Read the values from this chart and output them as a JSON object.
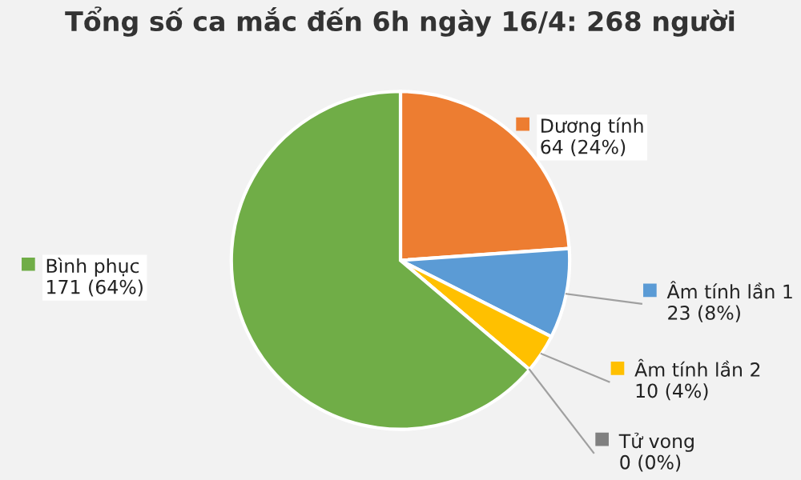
{
  "chart_data": {
    "type": "pie",
    "title": "Tổng số ca mắc đến 6h ngày 16/4: 268 người",
    "categories": [
      "Dương tính",
      "Âm tính lần 1",
      "Âm tính lần 2",
      "Tử vong",
      "Bình phục"
    ],
    "values": [
      64,
      23,
      10,
      0,
      171
    ],
    "colors": [
      "#ed7d31",
      "#5b9bd5",
      "#ffc000",
      "#808080",
      "#70ad47"
    ],
    "value_labels": [
      "64 (24%)",
      "23 (8%)",
      "10 (4%)",
      "0 (0%)",
      "171 (64%)"
    ],
    "legend": "right"
  }
}
